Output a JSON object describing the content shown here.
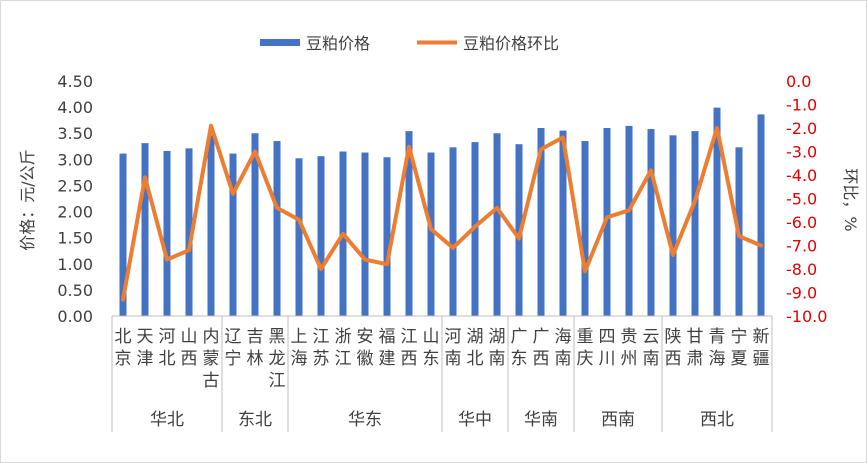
{
  "chart_data": {
    "type": "bar",
    "series": [
      {
        "name": "豆粕价格",
        "type": "bar",
        "axis": "left",
        "color": "#4472c4",
        "values": [
          3.11,
          3.31,
          3.16,
          3.21,
          3.46,
          3.11,
          3.5,
          3.35,
          3.02,
          3.06,
          3.15,
          3.13,
          3.04,
          3.54,
          3.13,
          3.23,
          3.33,
          3.5,
          3.29,
          3.6,
          3.55,
          3.35,
          3.6,
          3.64,
          3.58,
          3.46,
          3.54,
          3.99,
          3.23,
          3.86
        ]
      },
      {
        "name": "豆粕价格环比",
        "type": "line",
        "axis": "right",
        "color": "#ed7d31",
        "values": [
          -9.3,
          -4.1,
          -7.6,
          -7.2,
          -1.9,
          -4.8,
          -3.0,
          -5.4,
          -5.9,
          -8.0,
          -6.5,
          -7.6,
          -7.8,
          -2.8,
          -6.3,
          -7.1,
          -6.2,
          -5.4,
          -6.7,
          -2.9,
          -2.4,
          -8.1,
          -5.8,
          -5.5,
          -3.8,
          -7.4,
          -5.1,
          -2.0,
          -6.6,
          -7.0
        ]
      }
    ],
    "categories": [
      [
        "北",
        "京"
      ],
      [
        "天",
        "津"
      ],
      [
        "河",
        "北"
      ],
      [
        "山",
        "西"
      ],
      [
        "内",
        "蒙",
        "古"
      ],
      [
        "辽",
        "宁"
      ],
      [
        "吉",
        "林"
      ],
      [
        "黑",
        "龙",
        "江"
      ],
      [
        "上",
        "海"
      ],
      [
        "江",
        "苏"
      ],
      [
        "浙",
        "江"
      ],
      [
        "安",
        "徽"
      ],
      [
        "福",
        "建"
      ],
      [
        "江",
        "西"
      ],
      [
        "山",
        "东"
      ],
      [
        "河",
        "南"
      ],
      [
        "湖",
        "北"
      ],
      [
        "湖",
        "南"
      ],
      [
        "广",
        "东"
      ],
      [
        "广",
        "西"
      ],
      [
        "海",
        "南"
      ],
      [
        "重",
        "庆"
      ],
      [
        "四",
        "川"
      ],
      [
        "贵",
        "州"
      ],
      [
        "云",
        "南"
      ],
      [
        "陕",
        "西"
      ],
      [
        "甘",
        "肃"
      ],
      [
        "青",
        "海"
      ],
      [
        "宁",
        "夏"
      ],
      [
        "新",
        "疆"
      ]
    ],
    "groups": [
      {
        "label": "华北",
        "count": 5
      },
      {
        "label": "东北",
        "count": 3
      },
      {
        "label": "华东",
        "count": 7
      },
      {
        "label": "华中",
        "count": 3
      },
      {
        "label": "华南",
        "count": 3
      },
      {
        "label": "西南",
        "count": 4
      },
      {
        "label": "西北",
        "count": 5
      }
    ],
    "ylabel": "价格：元/公斤",
    "y2label": "环比，%",
    "ylim": [
      0,
      4.5
    ],
    "y2lim": [
      -10,
      0
    ],
    "yticks": [
      "0.00",
      "0.50",
      "1.00",
      "1.50",
      "2.00",
      "2.50",
      "3.00",
      "3.50",
      "4.00",
      "4.50"
    ],
    "y2ticks": [
      "0.0",
      "-1.0",
      "-2.0",
      "-3.0",
      "-4.0",
      "-5.0",
      "-6.0",
      "-7.0",
      "-8.0",
      "-9.0",
      "-10.0"
    ],
    "y2tick_color": "#e60000",
    "legend_position": "top-center"
  }
}
